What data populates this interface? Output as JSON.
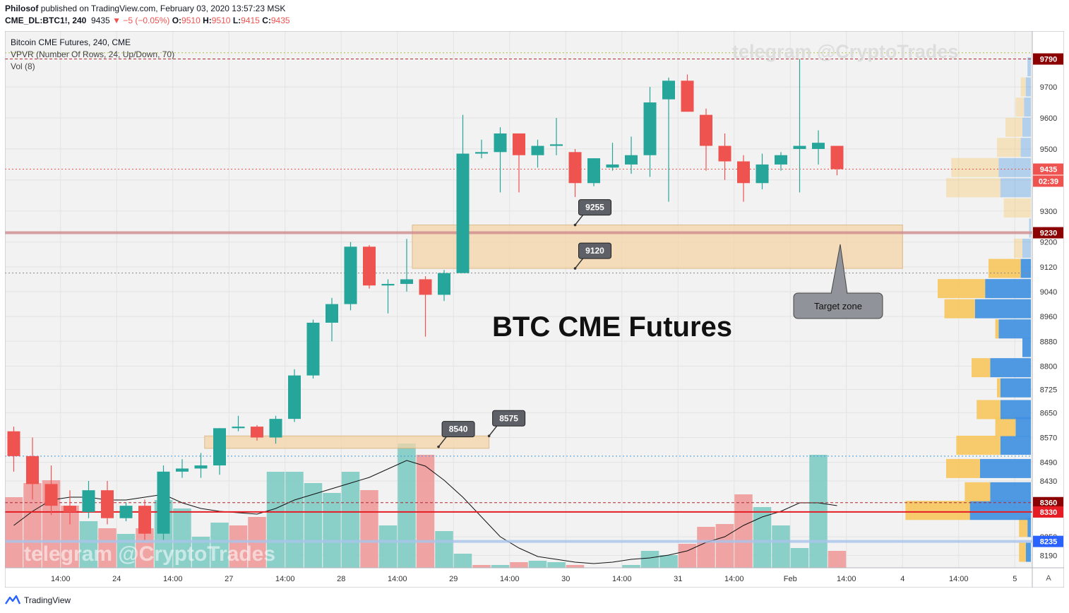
{
  "header": {
    "author": "Philosof",
    "published": "published on TradingView.com, February 03, 2020 13:57:23 MSK",
    "symbol": "CME_DL:BTC1!, 240",
    "last": "9435",
    "change": "−5 (−0.05%)",
    "o_label": "O:",
    "o": "9510",
    "h_label": "H:",
    "h": "9510",
    "l_label": "L:",
    "l": "9415",
    "c_label": "C:",
    "c": "9435"
  },
  "legend": {
    "line1": "Bitcoin CME Futures, 240, CME",
    "line2": "VPVR (Number Of Rows, 24, Up/Down, 70)",
    "line3": "Vol (8)"
  },
  "watermark": "telegram @CryptoTrades",
  "footer": {
    "brand": "TradingView"
  },
  "colors": {
    "up": "#26a69a",
    "down": "#ef5350",
    "zone": "#f5d5a8",
    "callout": "#5d6066",
    "vpvr_up": "#f7c75c",
    "vpvr_down": "#3d8fe0"
  },
  "chart_data": {
    "type": "candlestick",
    "title": "BTC CME Futures",
    "ylim": [
      8150,
      9880
    ],
    "x_ticks": [
      {
        "i": 2.5,
        "label": "14:00"
      },
      {
        "i": 5.5,
        "label": "24"
      },
      {
        "i": 8.5,
        "label": "14:00"
      },
      {
        "i": 11.5,
        "label": "27"
      },
      {
        "i": 14.5,
        "label": "14:00"
      },
      {
        "i": 17.5,
        "label": "28"
      },
      {
        "i": 20.5,
        "label": "14:00"
      },
      {
        "i": 23.5,
        "label": "29"
      },
      {
        "i": 26.5,
        "label": "14:00"
      },
      {
        "i": 29.5,
        "label": "30"
      },
      {
        "i": 32.5,
        "label": "14:00"
      },
      {
        "i": 35.5,
        "label": "31"
      },
      {
        "i": 38.5,
        "label": "14:00"
      },
      {
        "i": 41.5,
        "label": "Feb"
      },
      {
        "i": 44.5,
        "label": "14:00"
      },
      {
        "i": 47.5,
        "label": "4"
      },
      {
        "i": 50.5,
        "label": "14:00"
      },
      {
        "i": 53.5,
        "label": "5"
      }
    ],
    "y_ticks": [
      8190,
      8250,
      8330,
      8430,
      8490,
      8570,
      8650,
      8725,
      8800,
      8880,
      8960,
      9040,
      9120,
      9200,
      9300,
      9400,
      9500,
      9600,
      9700
    ],
    "candles": [
      [
        8590,
        8605,
        8460,
        8510
      ],
      [
        8510,
        8570,
        8370,
        8420
      ],
      [
        8420,
        8480,
        8320,
        8350
      ],
      [
        8350,
        8400,
        8290,
        8330
      ],
      [
        8330,
        8430,
        8310,
        8400
      ],
      [
        8400,
        8430,
        8290,
        8310
      ],
      [
        8310,
        8360,
        8300,
        8350
      ],
      [
        8350,
        8370,
        8240,
        8260
      ],
      [
        8260,
        8480,
        8240,
        8460
      ],
      [
        8460,
        8500,
        8440,
        8470
      ],
      [
        8470,
        8520,
        8440,
        8480
      ],
      [
        8480,
        8600,
        8450,
        8600
      ],
      [
        8600,
        8640,
        8590,
        8605
      ],
      [
        8605,
        8610,
        8560,
        8570
      ],
      [
        8570,
        8640,
        8550,
        8630
      ],
      [
        8630,
        8790,
        8620,
        8770
      ],
      [
        8770,
        8950,
        8760,
        8940
      ],
      [
        8940,
        9020,
        8880,
        9000
      ],
      [
        9000,
        9200,
        8980,
        9185
      ],
      [
        9185,
        9190,
        9050,
        9060
      ],
      [
        9060,
        9080,
        8970,
        9065
      ],
      [
        9065,
        9210,
        9040,
        9080
      ],
      [
        9080,
        9090,
        8895,
        9030
      ],
      [
        9030,
        9110,
        9010,
        9100
      ],
      [
        9100,
        9610,
        9100,
        9485
      ],
      [
        9485,
        9530,
        9470,
        9490
      ],
      [
        9490,
        9570,
        9360,
        9550
      ],
      [
        9550,
        9550,
        9360,
        9480
      ],
      [
        9480,
        9530,
        9440,
        9510
      ],
      [
        9510,
        9600,
        9480,
        9515
      ],
      [
        9490,
        9500,
        9345,
        9390
      ],
      [
        9390,
        9470,
        9380,
        9470
      ],
      [
        9440,
        9520,
        9430,
        9450
      ],
      [
        9450,
        9540,
        9420,
        9480
      ],
      [
        9480,
        9700,
        9410,
        9650
      ],
      [
        9660,
        9730,
        9330,
        9720
      ],
      [
        9720,
        9740,
        9620,
        9620
      ],
      [
        9610,
        9630,
        9430,
        9510
      ],
      [
        9510,
        9550,
        9400,
        9460
      ],
      [
        9460,
        9480,
        9330,
        9390
      ],
      [
        9390,
        9485,
        9370,
        9450
      ],
      [
        9450,
        9490,
        9430,
        9480
      ],
      [
        9500,
        9790,
        9360,
        9510
      ],
      [
        9500,
        9560,
        9450,
        9520
      ],
      [
        9510,
        9510,
        9415,
        9435
      ]
    ],
    "volume_colors": [
      "down",
      "down",
      "down",
      "down",
      "up",
      "down",
      "up",
      "down",
      "up",
      "up",
      "up",
      "up",
      "down",
      "down",
      "up",
      "up",
      "up",
      "up",
      "up",
      "down",
      "up",
      "up",
      "down",
      "up",
      "up",
      "down",
      "up",
      "down",
      "up",
      "up",
      "down",
      "up",
      "up",
      "up",
      "up",
      "up",
      "down",
      "down",
      "down",
      "down",
      "up",
      "up",
      "up",
      "up",
      "down"
    ],
    "volume": [
      0.5,
      0.6,
      0.62,
      0.44,
      0.33,
      0.28,
      0.24,
      0.28,
      0.48,
      0.42,
      0.22,
      0.32,
      0.3,
      0.36,
      0.68,
      0.68,
      0.6,
      0.53,
      0.68,
      0.55,
      0.3,
      0.88,
      0.8,
      0.26,
      0.1,
      0.02,
      0.02,
      0.04,
      0.05,
      0.04,
      0.02,
      0.0,
      0.0,
      0.02,
      0.12,
      0.09,
      0.17,
      0.29,
      0.31,
      0.52,
      0.43,
      0.3,
      0.14,
      0.8,
      0.12
    ],
    "vol_ma": [
      0.3,
      0.4,
      0.48,
      0.5,
      0.5,
      0.48,
      0.48,
      0.5,
      0.52,
      0.46,
      0.42,
      0.4,
      0.39,
      0.38,
      0.42,
      0.48,
      0.52,
      0.56,
      0.6,
      0.64,
      0.7,
      0.76,
      0.72,
      0.62,
      0.5,
      0.36,
      0.22,
      0.14,
      0.08,
      0.06,
      0.04,
      0.03,
      0.04,
      0.06,
      0.07,
      0.09,
      0.12,
      0.18,
      0.22,
      0.3,
      0.36,
      0.4,
      0.46,
      0.46,
      0.44
    ],
    "vpvr": [
      {
        "price": 8200,
        "up": 0.04,
        "down": 0.03
      },
      {
        "price": 8280,
        "up": 0.05,
        "down": 0.02
      },
      {
        "price": 8335,
        "up": 0.38,
        "down": 0.36
      },
      {
        "price": 8395,
        "up": 0.15,
        "down": 0.24
      },
      {
        "price": 8470,
        "up": 0.2,
        "down": 0.3
      },
      {
        "price": 8545,
        "up": 0.26,
        "down": 0.18
      },
      {
        "price": 8605,
        "up": 0.12,
        "down": 0.09
      },
      {
        "price": 8660,
        "up": 0.14,
        "down": 0.18
      },
      {
        "price": 8730,
        "up": 0.02,
        "down": 0.18
      },
      {
        "price": 8795,
        "up": 0.11,
        "down": 0.24
      },
      {
        "price": 8860,
        "up": 0.0,
        "down": 0.05
      },
      {
        "price": 8920,
        "up": 0.02,
        "down": 0.19
      },
      {
        "price": 8985,
        "up": 0.18,
        "down": 0.33
      },
      {
        "price": 9050,
        "up": 0.28,
        "down": 0.27
      },
      {
        "price": 9115,
        "up": 0.19,
        "down": 0.06
      },
      {
        "price": 9180,
        "up": 0.05,
        "down": 0.05
      },
      {
        "price": 9245,
        "up": 0.0,
        "down": 0.01
      },
      {
        "price": 9310,
        "up": 0.16,
        "down": 0.0
      },
      {
        "price": 9375,
        "up": 0.32,
        "down": 0.18
      },
      {
        "price": 9440,
        "up": 0.28,
        "down": 0.19
      },
      {
        "price": 9505,
        "up": 0.14,
        "down": 0.06
      },
      {
        "price": 9570,
        "up": 0.1,
        "down": 0.05
      },
      {
        "price": 9635,
        "up": 0.05,
        "down": 0.04
      },
      {
        "price": 9700,
        "up": 0.03,
        "down": 0.03
      },
      {
        "price": 9765,
        "up": 0.0,
        "down": 0.02
      }
    ],
    "hlines": [
      {
        "price": 9790,
        "color": "#b22833",
        "style": "dashed",
        "tag": "9790",
        "tag_bg": "#8b0000"
      },
      {
        "price": 9810,
        "color": "#a5c83a",
        "style": "dotted"
      },
      {
        "price": 9435,
        "color": "#ef5350",
        "style": "dotted",
        "tag": "9435",
        "tag_bg": "#ef5350"
      },
      {
        "price": 9230,
        "color": "#cf8b8f",
        "style": "solid_thick",
        "tag": "9230",
        "tag_bg": "#8b0000"
      },
      {
        "price": 9100,
        "color": "#888888",
        "style": "dotted"
      },
      {
        "price": 8510,
        "color": "#3d9be0",
        "style": "dotted"
      },
      {
        "price": 8360,
        "color": "#b22833",
        "style": "dashed",
        "tag": "8360",
        "tag_bg": "#8b0000"
      },
      {
        "price": 8330,
        "color": "#e51c23",
        "style": "solid",
        "tag": "8330",
        "tag_bg": "#e51c23"
      },
      {
        "price": 8235,
        "color": "#a9c4ec",
        "style": "solid_thick",
        "tag": "8235",
        "tag_bg": "#2962ff"
      }
    ],
    "countdown": "02:39",
    "zones": [
      {
        "from_i": 21.3,
        "to_i": 47.5,
        "low": 9115,
        "high": 9255
      },
      {
        "from_i": 10.2,
        "to_i": 25.4,
        "low": 8535,
        "high": 8575
      }
    ],
    "callouts": [
      {
        "text": "9255",
        "i": 30.0,
        "price": 9255
      },
      {
        "text": "9120",
        "i": 30.0,
        "price": 9115
      },
      {
        "text": "8540",
        "i": 22.7,
        "price": 8540
      },
      {
        "text": "8575",
        "i": 25.4,
        "price": 8575
      }
    ],
    "note": "Target zone",
    "corner_label": "A"
  }
}
